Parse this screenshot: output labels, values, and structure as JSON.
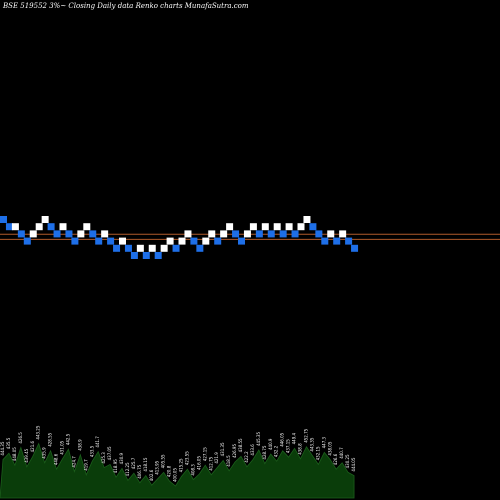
{
  "title": "BSE 519552  3%~  Closing Daily data  Renko  charts MunafaSutra.com",
  "chart_data": {
    "type": "renko",
    "brick_size_note": "3%",
    "colors": {
      "background": "#000000",
      "up_brick": "#ffffff",
      "down_brick": "#1e6fe8",
      "reference_line": "#b05a2a",
      "volume_fill": "#0a3d0a",
      "volume_outline": "#1b5e1b",
      "text": "#ffffff"
    },
    "bricks": [
      {
        "dir": "down",
        "level": 0
      },
      {
        "dir": "down",
        "level": -1
      },
      {
        "dir": "up",
        "level": -1
      },
      {
        "dir": "down",
        "level": -2
      },
      {
        "dir": "down",
        "level": -3
      },
      {
        "dir": "up",
        "level": -2
      },
      {
        "dir": "up",
        "level": -1
      },
      {
        "dir": "up",
        "level": 0
      },
      {
        "dir": "down",
        "level": -1
      },
      {
        "dir": "down",
        "level": -2
      },
      {
        "dir": "up",
        "level": -1
      },
      {
        "dir": "down",
        "level": -2
      },
      {
        "dir": "down",
        "level": -3
      },
      {
        "dir": "up",
        "level": -2
      },
      {
        "dir": "up",
        "level": -1
      },
      {
        "dir": "down",
        "level": -2
      },
      {
        "dir": "down",
        "level": -3
      },
      {
        "dir": "up",
        "level": -2
      },
      {
        "dir": "down",
        "level": -3
      },
      {
        "dir": "down",
        "level": -4
      },
      {
        "dir": "up",
        "level": -3
      },
      {
        "dir": "down",
        "level": -4
      },
      {
        "dir": "down",
        "level": -5
      },
      {
        "dir": "up",
        "level": -4
      },
      {
        "dir": "down",
        "level": -5
      },
      {
        "dir": "up",
        "level": -4
      },
      {
        "dir": "down",
        "level": -5
      },
      {
        "dir": "up",
        "level": -4
      },
      {
        "dir": "up",
        "level": -3
      },
      {
        "dir": "down",
        "level": -4
      },
      {
        "dir": "up",
        "level": -3
      },
      {
        "dir": "up",
        "level": -2
      },
      {
        "dir": "down",
        "level": -3
      },
      {
        "dir": "down",
        "level": -4
      },
      {
        "dir": "up",
        "level": -3
      },
      {
        "dir": "up",
        "level": -2
      },
      {
        "dir": "down",
        "level": -3
      },
      {
        "dir": "up",
        "level": -2
      },
      {
        "dir": "up",
        "level": -1
      },
      {
        "dir": "down",
        "level": -2
      },
      {
        "dir": "down",
        "level": -3
      },
      {
        "dir": "up",
        "level": -2
      },
      {
        "dir": "up",
        "level": -1
      },
      {
        "dir": "down",
        "level": -2
      },
      {
        "dir": "up",
        "level": -1
      },
      {
        "dir": "down",
        "level": -2
      },
      {
        "dir": "up",
        "level": -1
      },
      {
        "dir": "down",
        "level": -2
      },
      {
        "dir": "up",
        "level": -1
      },
      {
        "dir": "down",
        "level": -2
      },
      {
        "dir": "up",
        "level": -1
      },
      {
        "dir": "up",
        "level": 0
      },
      {
        "dir": "down",
        "level": -1
      },
      {
        "dir": "down",
        "level": -2
      },
      {
        "dir": "down",
        "level": -3
      },
      {
        "dir": "up",
        "level": -2
      },
      {
        "dir": "down",
        "level": -3
      },
      {
        "dir": "up",
        "level": -2
      },
      {
        "dir": "down",
        "level": -3
      },
      {
        "dir": "down",
        "level": -4
      }
    ],
    "reference_lines": [
      -2.4,
      -3.1
    ],
    "price_labels": [
      "444.35",
      "435.5",
      "448.05",
      "426.5",
      "439.45",
      "421.6",
      "443.25",
      "435.9",
      "428.55",
      "448.6",
      "431.05",
      "442.5",
      "424.7",
      "438.9",
      "419.7",
      "433.5",
      "441.7",
      "425.3",
      "437.05",
      "418.95",
      "430.9",
      "412.25",
      "425.7",
      "406.75",
      "418.15",
      "402.6",
      "413.95",
      "405.55",
      "420.8",
      "400.05",
      "415.25",
      "423.55",
      "408.3",
      "416.05",
      "427.15",
      "412.75",
      "421.9",
      "431.35",
      "418.5",
      "426.95",
      "438.55",
      "422.2",
      "433.6",
      "445.35",
      "428.75",
      "440.9",
      "432.2",
      "446.05",
      "437.15",
      "449.4",
      "438.8",
      "452.75",
      "443.35",
      "432.15",
      "447.3",
      "438.05",
      "426.6",
      "440.7",
      "430.25",
      "444.05"
    ],
    "volume": [
      4.8,
      5.6,
      4.1,
      6.3,
      3.9,
      5.2,
      6.8,
      4.4,
      5.9,
      3.6,
      4.9,
      6.1,
      3.3,
      5.4,
      2.9,
      4.6,
      5.8,
      3.8,
      4.2,
      2.6,
      3.7,
      2.2,
      3.1,
      1.9,
      2.8,
      1.6,
      2.4,
      3.2,
      2.1,
      1.5,
      2.7,
      3.6,
      2.3,
      3.0,
      4.1,
      2.9,
      3.8,
      4.7,
      3.4,
      4.5,
      5.2,
      3.9,
      4.8,
      6.0,
      4.3,
      5.5,
      4.6,
      5.9,
      5.1,
      6.2,
      4.9,
      6.4,
      5.3,
      4.2,
      5.7,
      4.8,
      3.6,
      4.4,
      3.2,
      2.8
    ]
  }
}
